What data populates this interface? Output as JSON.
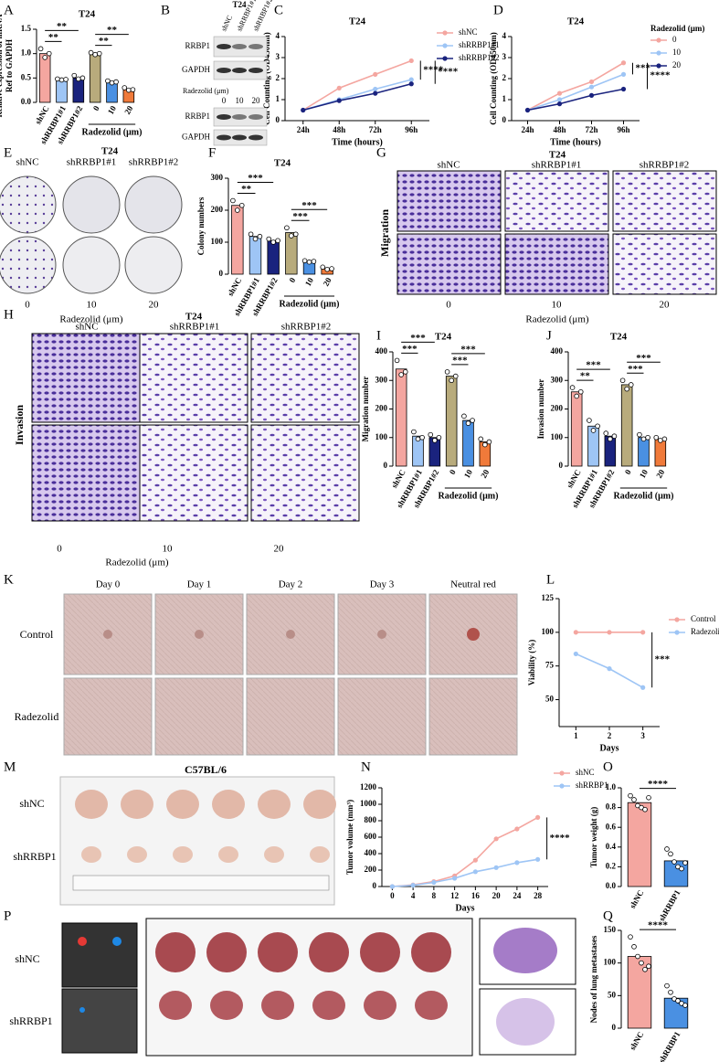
{
  "chart_data": [
    {
      "type": "bar",
      "title": "T24",
      "ylabel": [
        "Relative expression of mRNA",
        "Ref to GAPDH"
      ],
      "categories": [
        "shNC",
        "shRRBP1#1",
        "shRRBP1#2",
        "0",
        "10",
        "20"
      ],
      "group_label": "Radezolid (μm)",
      "values": [
        1.0,
        0.47,
        0.5,
        1.0,
        0.42,
        0.27
      ],
      "points": [
        [
          1.1,
          0.92,
          1.0
        ],
        [
          0.48,
          0.46,
          0.47
        ],
        [
          0.55,
          0.48,
          0.5
        ],
        [
          1.02,
          0.98,
          1.0
        ],
        [
          0.44,
          0.4,
          0.42
        ],
        [
          0.3,
          0.25,
          0.26
        ]
      ],
      "colors": [
        "#f4a6a0",
        "#9ec5f5",
        "#1a237e",
        "#b8ab7c",
        "#4a90e2",
        "#f07a3a"
      ],
      "ylim": [
        0,
        1.5
      ],
      "yticks": [
        {
          "value": 0,
          "label": "0.0"
        },
        0.5,
        {
          "value": 1,
          "label": "1.0"
        },
        1.5
      ],
      "annotations": [
        "**",
        "**",
        "**",
        "**"
      ]
    },
    {
      "type": "line",
      "title": "T24",
      "ylabel": "Cell Counting (OD450nm)",
      "xlabel": "Time (hours)",
      "categories": [
        "24h",
        "48h",
        "72h",
        "96h"
      ],
      "series": [
        {
          "name": "shNC",
          "color": "#f4a6a0",
          "values": [
            0.5,
            1.55,
            2.2,
            2.85
          ]
        },
        {
          "name": "shRRBP1#1",
          "color": "#9ec5f5",
          "values": [
            0.5,
            1.0,
            1.5,
            1.95
          ]
        },
        {
          "name": "shRRBP1#2",
          "color": "#1a237e",
          "values": [
            0.5,
            0.95,
            1.3,
            1.75
          ]
        }
      ],
      "ylim": [
        0,
        4
      ],
      "yticks": [
        0,
        1,
        2,
        3,
        4
      ],
      "annotations": [
        "****",
        "****"
      ]
    },
    {
      "type": "line",
      "title": "T24",
      "ylabel": "Cell Counting (OD450nm)",
      "xlabel": "Time (hours)",
      "legend_title": "Radezolid (μm)",
      "categories": [
        "24h",
        "48h",
        "72h",
        "96h"
      ],
      "series": [
        {
          "name": "0",
          "color": "#f4a6a0",
          "values": [
            0.5,
            1.3,
            1.85,
            2.75
          ]
        },
        {
          "name": "10",
          "color": "#9ec5f5",
          "values": [
            0.5,
            1.0,
            1.6,
            2.2
          ]
        },
        {
          "name": "20",
          "color": "#1a237e",
          "values": [
            0.5,
            0.8,
            1.2,
            1.5
          ]
        }
      ],
      "ylim": [
        0,
        4
      ],
      "yticks": [
        0,
        1,
        2,
        3,
        4
      ],
      "annotations": [
        "***",
        "****"
      ]
    },
    {
      "type": "bar",
      "title": "T24",
      "ylabel": "Colony numbers",
      "categories": [
        "shNC",
        "shRRBP1#1",
        "shRRBP1#2",
        "0",
        "10",
        "20"
      ],
      "group_label": "Radezolid (μm)",
      "values": [
        215,
        118,
        105,
        130,
        40,
        18
      ],
      "points": [
        [
          230,
          200,
          215
        ],
        [
          125,
          110,
          118
        ],
        [
          110,
          100,
          105
        ],
        [
          145,
          120,
          125
        ],
        [
          42,
          38,
          40
        ],
        [
          22,
          15,
          17
        ]
      ],
      "colors": [
        "#f4a6a0",
        "#9ec5f5",
        "#1a237e",
        "#b8ab7c",
        "#4a90e2",
        "#f07a3a"
      ],
      "ylim": [
        0,
        300
      ],
      "yticks": [
        0,
        100,
        200,
        300
      ],
      "annotations": [
        "**",
        "***",
        "***",
        "***"
      ]
    },
    {
      "type": "bar",
      "title": "T24",
      "ylabel": "Migration number",
      "categories": [
        "shNC",
        "shRRBP1#1",
        "shRRBP1#2",
        "0",
        "10",
        "20"
      ],
      "group_label": "Radezolid (μm)",
      "values": [
        340,
        105,
        100,
        315,
        160,
        85
      ],
      "points": [
        [
          370,
          320,
          330
        ],
        [
          120,
          95,
          100
        ],
        [
          110,
          90,
          100
        ],
        [
          330,
          300,
          315
        ],
        [
          175,
          150,
          160
        ],
        [
          95,
          75,
          85
        ]
      ],
      "colors": [
        "#f4a6a0",
        "#9ec5f5",
        "#1a237e",
        "#b8ab7c",
        "#4a90e2",
        "#f07a3a"
      ],
      "ylim": [
        0,
        400
      ],
      "yticks": [
        0,
        100,
        200,
        300,
        400
      ],
      "annotations": [
        "***",
        "***",
        "***",
        "***"
      ]
    },
    {
      "type": "bar",
      "title": "T24",
      "ylabel": "Invasion number",
      "categories": [
        "shNC",
        "shRRBP1#1",
        "shRRBP1#2",
        "0",
        "10",
        "20"
      ],
      "group_label": "Radezolid (μm)",
      "values": [
        260,
        140,
        105,
        285,
        100,
        95
      ],
      "points": [
        [
          275,
          245,
          260
        ],
        [
          160,
          125,
          140
        ],
        [
          115,
          95,
          105
        ],
        [
          300,
          270,
          285
        ],
        [
          110,
          95,
          100
        ],
        [
          100,
          90,
          95
        ]
      ],
      "colors": [
        "#f4a6a0",
        "#9ec5f5",
        "#1a237e",
        "#b8ab7c",
        "#4a90e2",
        "#f07a3a"
      ],
      "ylim": [
        0,
        400
      ],
      "yticks": [
        0,
        100,
        200,
        300,
        400
      ],
      "annotations": [
        "**",
        "***",
        "***",
        "***"
      ]
    },
    {
      "type": "line",
      "ylabel": "Viability (%)",
      "xlabel": "Days",
      "x": [
        1,
        2,
        3
      ],
      "xlim": [
        0.5,
        3.5
      ],
      "xticks": [
        1,
        2,
        3
      ],
      "series": [
        {
          "name": "Control",
          "color": "#f4a6a0",
          "values": [
            100,
            100,
            100
          ]
        },
        {
          "name": "Radezolid",
          "color": "#9ec5f5",
          "values": [
            84,
            73,
            59
          ]
        }
      ],
      "ylim": [
        30,
        125
      ],
      "yticks": [
        50,
        75,
        100,
        125
      ],
      "annotations": [
        "***"
      ]
    },
    {
      "type": "line",
      "ylabel": "Tumor volume (mm³)",
      "xlabel": "Days",
      "x": [
        0,
        4,
        8,
        12,
        16,
        20,
        24,
        28
      ],
      "xlim": [
        -2,
        30
      ],
      "xticks": [
        0,
        4,
        8,
        12,
        16,
        20,
        24,
        28
      ],
      "series": [
        {
          "name": "shNC",
          "color": "#f4a6a0",
          "values": [
            0,
            20,
            60,
            130,
            320,
            580,
            700,
            840
          ]
        },
        {
          "name": "shRRBP1",
          "color": "#9ec5f5",
          "values": [
            0,
            15,
            50,
            100,
            180,
            230,
            290,
            330
          ]
        }
      ],
      "ylim": [
        0,
        1200
      ],
      "yticks": [
        0,
        200,
        400,
        600,
        800,
        1000,
        1200
      ],
      "annotations": [
        "****"
      ]
    },
    {
      "type": "bar",
      "ylabel": "Tumor weight (g)",
      "categories": [
        "shNC",
        "shRRBP1"
      ],
      "values": [
        0.85,
        0.26
      ],
      "points": [
        [
          0.92,
          0.88,
          0.82,
          0.8,
          0.78,
          0.9
        ],
        [
          0.38,
          0.33,
          0.25,
          0.2,
          0.18,
          0.24
        ]
      ],
      "colors": [
        "#f4a6a0",
        "#4a90e2"
      ],
      "ylim": [
        0,
        1
      ],
      "yticks": [
        {
          "value": 0,
          "label": "0.0"
        },
        0.2,
        0.4,
        0.6,
        0.8,
        {
          "value": 1,
          "label": "1.0"
        }
      ],
      "annotations": [
        "****"
      ]
    },
    {
      "type": "bar",
      "ylabel": "Nodes of lung metastases",
      "categories": [
        "shNC",
        "shRRBP1"
      ],
      "values": [
        110,
        46
      ],
      "points": [
        [
          140,
          125,
          110,
          100,
          90,
          95
        ],
        [
          65,
          55,
          45,
          42,
          38,
          35
        ]
      ],
      "colors": [
        "#f4a6a0",
        "#4a90e2"
      ],
      "ylim": [
        0,
        150
      ],
      "yticks": [
        0,
        50,
        100,
        150
      ],
      "annotations": [
        "****"
      ]
    }
  ],
  "panels": {
    "letters": [
      "A",
      "B",
      "C",
      "D",
      "E",
      "F",
      "G",
      "H",
      "I",
      "J",
      "K",
      "L",
      "M",
      "N",
      "O",
      "P",
      "Q"
    ],
    "B": {
      "title": "T24",
      "columns": [
        "shNC",
        "shRRBP1#1",
        "shRRBP1#2"
      ],
      "rows": [
        "RRBP1",
        "GAPDH",
        "RRBP1",
        "GAPDH"
      ],
      "treatment": "Radezolid (μm)",
      "doses": [
        "0",
        "10",
        "20"
      ]
    },
    "E": {
      "title": "T24",
      "columns": [
        "shNC",
        "shRRBP1#1",
        "shRRBP1#2"
      ],
      "doses": [
        "0",
        "10",
        "20"
      ],
      "treatment": "Radezolid (μm)"
    },
    "G": {
      "title": "T24",
      "columns": [
        "shNC",
        "shRRBP1#1",
        "shRRBP1#2"
      ],
      "row": "Migration",
      "doses": [
        "0",
        "10",
        "20"
      ],
      "treatment": "Radezolid (μm)"
    },
    "H": {
      "title": "T24",
      "columns": [
        "shNC",
        "shRRBP1#1",
        "shRRBP1#2"
      ],
      "row": "Invasion",
      "doses": [
        "0",
        "10",
        "20"
      ],
      "treatment": "Radezolid (μm)"
    },
    "K": {
      "columns": [
        "Day 0",
        "Day 1",
        "Day 2",
        "Day 3",
        "Neutral red"
      ],
      "rows": [
        "Control",
        "Radezolid"
      ]
    },
    "M": {
      "title": "C57BL/6",
      "rows": [
        "shNC",
        "shRRBP1"
      ]
    },
    "P": {
      "rows": [
        "shNC",
        "shRRBP1"
      ]
    }
  }
}
